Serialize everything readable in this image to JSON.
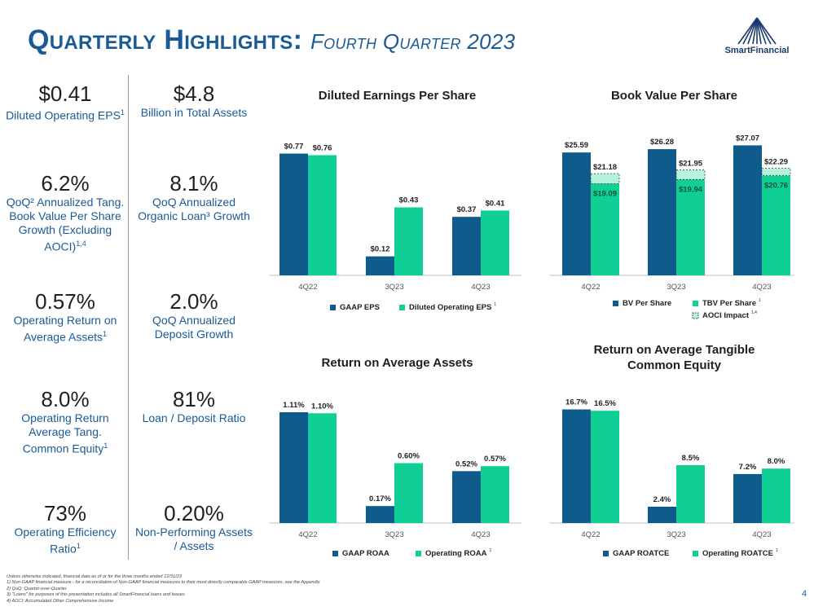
{
  "page": {
    "title_main": "Quarterly Highlights:",
    "title_sub": "Fourth Quarter 2023",
    "logo_text": "SmartFinancial",
    "page_number": "4",
    "footnotes": [
      "Unless otherwise indicated, financial data as of or for the three months ended 12/31/23",
      "1)   Non-GAAP financial measure - for a reconciliation of Non-GAAP financial measures to their most directly comparable GAAP measures, see the Appendix",
      "2)   QoQ: Quarter-over-Quarter",
      "3)   \"Loans\" for purposes of this presentation includes all SmartFinancial loans and leases",
      "4)   AOCI: Accumulated Other Comprehensive Income"
    ]
  },
  "kpis_left": [
    {
      "value": "$0.41",
      "label": "Diluted Operating EPS",
      "sup": "1"
    },
    {
      "value": "6.2%",
      "label": "QoQ² Annualized Tang. Book Value Per Share Growth (Excluding AOCI)",
      "sup": "1,4"
    },
    {
      "value": "0.57%",
      "label": "Operating Return on Average Assets",
      "sup": "1"
    },
    {
      "value": "8.0%",
      "label": "Operating Return Average Tang. Common Equity",
      "sup": "1"
    },
    {
      "value": "73%",
      "label": "Operating Efficiency Ratio",
      "sup": "1"
    }
  ],
  "kpis_right": [
    {
      "value": "$4.8",
      "label": "Billion in Total Assets",
      "sup": ""
    },
    {
      "value": "8.1%",
      "label": "QoQ Annualized Organic Loan³ Growth",
      "sup": ""
    },
    {
      "value": "2.0%",
      "label": "QoQ Annualized Deposit Growth",
      "sup": ""
    },
    {
      "value": "81%",
      "label": "Loan / Deposit Ratio",
      "sup": ""
    },
    {
      "value": "0.20%",
      "label": "Non-Performing Assets / Assets",
      "sup": ""
    }
  ],
  "colors": {
    "navy": "#0e5b8c",
    "teal": "#0fcf95",
    "aoci_fill": "#b5f2dc",
    "title": "#1a5a96"
  },
  "chart_data": [
    {
      "id": "eps",
      "type": "bar",
      "title": "Diluted Earnings Per Share",
      "categories": [
        "4Q22",
        "3Q23",
        "4Q23"
      ],
      "ylim": [
        0,
        0.85
      ],
      "series": [
        {
          "name": "GAAP EPS",
          "values": [
            0.77,
            0.12,
            0.37
          ],
          "labels": [
            "$0.77",
            "$0.12",
            "$0.37"
          ],
          "color": "#0e5b8c",
          "sup": ""
        },
        {
          "name": "Diluted Operating EPS",
          "values": [
            0.76,
            0.43,
            0.41
          ],
          "labels": [
            "$0.76",
            "$0.43",
            "$0.41"
          ],
          "color": "#0fcf95",
          "sup": "1"
        }
      ]
    },
    {
      "id": "bvps",
      "type": "bar",
      "title": "Book Value Per Share",
      "categories": [
        "4Q22",
        "3Q23",
        "4Q23"
      ],
      "ylim": [
        0,
        28.5
      ],
      "series": [
        {
          "name": "BV Per Share",
          "values": [
            25.59,
            26.28,
            27.07
          ],
          "labels": [
            "$25.59",
            "$26.28",
            "$27.07"
          ],
          "color": "#0e5b8c",
          "sup": ""
        },
        {
          "name": "TBV Per Share",
          "values": [
            19.09,
            19.94,
            20.76
          ],
          "labels": [
            "$19.09",
            "$19.94",
            "$20.76"
          ],
          "color": "#0fcf95",
          "sup": "1"
        }
      ],
      "aoci": {
        "name": "AOCI Impact",
        "sup": "1,4",
        "totals": [
          21.18,
          21.95,
          22.29
        ],
        "labels": [
          "$21.18",
          "$21.95",
          "$22.29"
        ]
      }
    },
    {
      "id": "roaa",
      "type": "bar",
      "title": "Return on Average Assets",
      "categories": [
        "4Q22",
        "3Q23",
        "4Q23"
      ],
      "ylim": [
        0,
        1.2
      ],
      "series": [
        {
          "name": "GAAP ROAA",
          "values": [
            1.11,
            0.17,
            0.52
          ],
          "labels": [
            "1.11%",
            "0.17%",
            "0.52%"
          ],
          "color": "#0e5b8c",
          "sup": ""
        },
        {
          "name": "Operating ROAA",
          "values": [
            1.1,
            0.6,
            0.57
          ],
          "labels": [
            "1.10%",
            "0.60%",
            "0.57%"
          ],
          "color": "#0fcf95",
          "sup": "1"
        }
      ]
    },
    {
      "id": "roatce",
      "type": "bar",
      "title": "Return on Average Tangible Common Equity",
      "categories": [
        "4Q22",
        "3Q23",
        "4Q23"
      ],
      "ylim": [
        0,
        18.2
      ],
      "series": [
        {
          "name": "GAAP ROATCE",
          "values": [
            16.7,
            2.4,
            7.2
          ],
          "labels": [
            "16.7%",
            "2.4%",
            "7.2%"
          ],
          "color": "#0e5b8c",
          "sup": ""
        },
        {
          "name": "Operating ROATCE",
          "values": [
            16.5,
            8.5,
            8.0
          ],
          "labels": [
            "16.5%",
            "8.5%",
            "8.0%"
          ],
          "color": "#0fcf95",
          "sup": "1"
        }
      ]
    }
  ]
}
